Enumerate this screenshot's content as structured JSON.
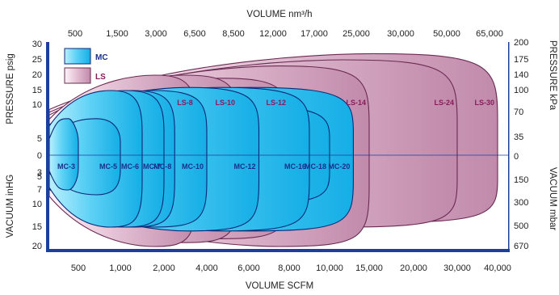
{
  "chart_data": {
    "type": "area",
    "title": "",
    "top_axis": {
      "label": "VOLUME nm³/h",
      "ticks": [
        "500",
        "1,500",
        "3,000",
        "6,500",
        "8,500",
        "12,000",
        "17,000",
        "25,000",
        "30,000",
        "50,000",
        "65,000"
      ]
    },
    "bottom_axis": {
      "label": "VOLUME SCFM",
      "ticks": [
        "500",
        "1,000",
        "2,000",
        "4,000",
        "6,000",
        "8,000",
        "10,000",
        "15,000",
        "20,000",
        "30,000",
        "40,000"
      ]
    },
    "left_axis": {
      "pressure_label": "PRESSURE psig",
      "vacuum_label": "VACUUM inHG",
      "pressure_ticks": [
        "30",
        "25",
        "20",
        "15",
        "10",
        "5",
        "0"
      ],
      "vacuum_ticks": [
        "3",
        "5",
        "7",
        "10",
        "15",
        "20"
      ]
    },
    "right_axis": {
      "pressure_label": "PRESSURE kPa",
      "vacuum_label": "VACUUM mbar",
      "pressure_ticks": [
        "200",
        "175",
        "140",
        "100",
        "70",
        "35",
        "0"
      ],
      "vacuum_ticks": [
        "150",
        "300",
        "500",
        "670"
      ]
    },
    "legend": [
      {
        "key": "MC",
        "color": "#1fb4ea"
      },
      {
        "key": "LS",
        "color": "#c58fb0"
      }
    ],
    "series": [
      {
        "name": "MC-3",
        "family": "MC",
        "volume_scfm": 500,
        "pressure_psig": 8,
        "vacuum_inhg": 7
      },
      {
        "name": "MC-5",
        "family": "MC",
        "volume_scfm": 1000,
        "pressure_psig": 8,
        "vacuum_inhg": 8
      },
      {
        "name": "MC-6",
        "family": "MC",
        "volume_scfm": 1500,
        "pressure_psig": 15,
        "vacuum_inhg": 15
      },
      {
        "name": "MC-7",
        "family": "MC",
        "volume_scfm": 2000,
        "pressure_psig": 15,
        "vacuum_inhg": 15
      },
      {
        "name": "MC-8",
        "family": "MC",
        "volume_scfm": 2500,
        "pressure_psig": 15,
        "vacuum_inhg": 15
      },
      {
        "name": "LS-8",
        "family": "LS",
        "volume_scfm": 3500,
        "pressure_psig": 20,
        "vacuum_inhg": 20
      },
      {
        "name": "MC-10",
        "family": "MC",
        "volume_scfm": 4000,
        "pressure_psig": 15,
        "vacuum_inhg": 15
      },
      {
        "name": "LS-10",
        "family": "LS",
        "volume_scfm": 5500,
        "pressure_psig": 20,
        "vacuum_inhg": 19
      },
      {
        "name": "LS-12",
        "family": "LS",
        "volume_scfm": 8000,
        "pressure_psig": 19,
        "vacuum_inhg": 18
      },
      {
        "name": "MC-12",
        "family": "MC",
        "volume_scfm": 6500,
        "pressure_psig": 16,
        "vacuum_inhg": 16
      },
      {
        "name": "MC-16",
        "family": "MC",
        "volume_scfm": 9000,
        "pressure_psig": 16,
        "vacuum_inhg": 16
      },
      {
        "name": "MC-18",
        "family": "MC",
        "volume_scfm": 10000,
        "pressure_psig": 10,
        "vacuum_inhg": 10
      },
      {
        "name": "MC-20",
        "family": "MC",
        "volume_scfm": 13000,
        "pressure_psig": 16,
        "vacuum_inhg": 16
      },
      {
        "name": "LS-14",
        "family": "LS",
        "volume_scfm": 15000,
        "pressure_psig": 23,
        "vacuum_inhg": 20
      },
      {
        "name": "LS-24",
        "family": "LS",
        "volume_scfm": 30000,
        "pressure_psig": 25,
        "vacuum_inhg": 15
      },
      {
        "name": "LS-30",
        "family": "LS",
        "volume_scfm": 40000,
        "pressure_psig": 27,
        "vacuum_inhg": 14
      }
    ]
  }
}
